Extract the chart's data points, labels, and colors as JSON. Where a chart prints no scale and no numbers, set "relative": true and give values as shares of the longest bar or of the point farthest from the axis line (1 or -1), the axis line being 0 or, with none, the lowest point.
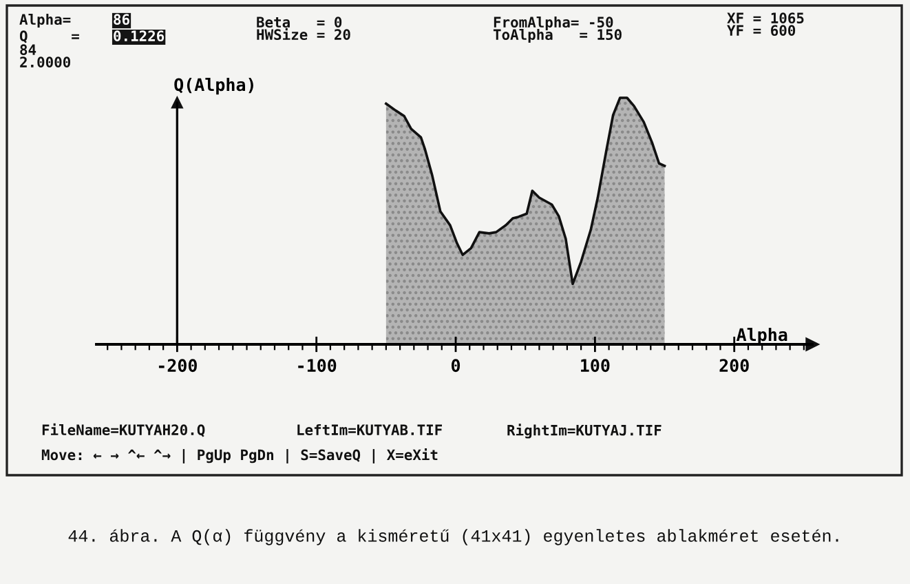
{
  "chart_data": {
    "type": "area",
    "relative": true,
    "xlabel": "Alpha",
    "ylabel": "Q(Alpha)",
    "x": [
      -50,
      -43,
      -37,
      -32,
      -25,
      -22,
      -17,
      -11,
      -4,
      1,
      5,
      11,
      17,
      24,
      29,
      36,
      41,
      45,
      51,
      55,
      60,
      69,
      74,
      79,
      84,
      90,
      97,
      102,
      108,
      113,
      118,
      123,
      128,
      135,
      141,
      146,
      150
    ],
    "series": [
      {
        "color": "#b4b4b4",
        "values": [
          0.976,
          0.948,
          0.926,
          0.874,
          0.84,
          0.79,
          0.688,
          0.539,
          0.483,
          0.409,
          0.363,
          0.39,
          0.455,
          0.45,
          0.455,
          0.483,
          0.511,
          0.517,
          0.53,
          0.623,
          0.595,
          0.567,
          0.52,
          0.428,
          0.245,
          0.335,
          0.465,
          0.595,
          0.781,
          0.93,
          1,
          1,
          0.967,
          0.902,
          0.818,
          0.734,
          0.724
        ]
      }
    ],
    "xlim": [
      -258,
      256
    ],
    "xticks": [
      -200,
      -100,
      0,
      100,
      200
    ],
    "legend": false,
    "annotations": [
      "Alpha=",
      "86",
      "Q     =",
      "0.1226",
      "84",
      "2.0000",
      "Beta   = 0",
      "HWSize = 20",
      "FromAlpha= -50",
      "ToAlpha   = 150",
      "XF = 1065",
      "YF = 600",
      "FileName=KUTYAH20.Q",
      "LeftIm=KUTYAB.TIF",
      "RightIm=KUTYAJ.TIF",
      "Move: ← → ^← ^→ | PgUp PgDn | S=SaveQ | X=eXit",
      "44. ábra. A Q(α) függvény a kisméretű (41x41) egyenletes ablakméret esetén."
    ]
  }
}
